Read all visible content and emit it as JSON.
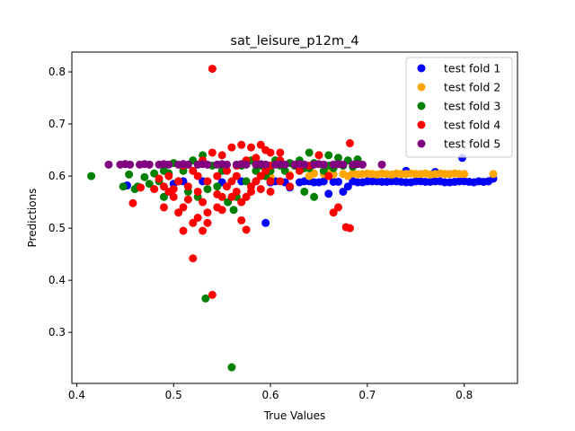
{
  "chart_data": {
    "type": "scatter",
    "title": "sat_leisure_p12m_4",
    "xlabel": "True Values",
    "ylabel": "Predictions",
    "xlim": [
      0.395,
      0.855
    ],
    "ylim": [
      0.202,
      0.838
    ],
    "xticks": [
      "0.4",
      "0.5",
      "0.6",
      "0.7",
      "0.8"
    ],
    "yticks": [
      "0.3",
      "0.4",
      "0.5",
      "0.6",
      "0.7",
      "0.8"
    ],
    "legend_position": "top-right",
    "grid": false,
    "series": [
      {
        "name": "test fold 1",
        "color": "#0000ff",
        "points": [
          [
            0.452,
            0.582
          ],
          [
            0.5,
            0.585
          ],
          [
            0.51,
            0.59
          ],
          [
            0.53,
            0.59
          ],
          [
            0.55,
            0.588
          ],
          [
            0.57,
            0.59
          ],
          [
            0.595,
            0.51
          ],
          [
            0.6,
            0.588
          ],
          [
            0.62,
            0.578
          ],
          [
            0.63,
            0.588
          ],
          [
            0.64,
            0.59
          ],
          [
            0.65,
            0.588
          ],
          [
            0.66,
            0.566
          ],
          [
            0.67,
            0.589
          ],
          [
            0.675,
            0.57
          ],
          [
            0.68,
            0.58
          ],
          [
            0.69,
            0.588
          ],
          [
            0.7,
            0.59
          ],
          [
            0.71,
            0.59
          ],
          [
            0.72,
            0.589
          ],
          [
            0.73,
            0.59
          ],
          [
            0.74,
            0.588
          ],
          [
            0.75,
            0.59
          ],
          [
            0.76,
            0.589
          ],
          [
            0.77,
            0.59
          ],
          [
            0.78,
            0.588
          ],
          [
            0.79,
            0.589
          ],
          [
            0.798,
            0.635
          ],
          [
            0.8,
            0.59
          ],
          [
            0.81,
            0.588
          ],
          [
            0.815,
            0.59
          ],
          [
            0.82,
            0.589
          ],
          [
            0.825,
            0.59
          ],
          [
            0.83,
            0.595
          ],
          [
            0.585,
            0.59
          ],
          [
            0.605,
            0.59
          ],
          [
            0.615,
            0.588
          ],
          [
            0.635,
            0.59
          ],
          [
            0.645,
            0.588
          ],
          [
            0.655,
            0.59
          ],
          [
            0.665,
            0.589
          ],
          [
            0.685,
            0.59
          ],
          [
            0.695,
            0.588
          ],
          [
            0.705,
            0.59
          ],
          [
            0.715,
            0.589
          ],
          [
            0.725,
            0.59
          ],
          [
            0.735,
            0.589
          ],
          [
            0.745,
            0.588
          ],
          [
            0.755,
            0.59
          ],
          [
            0.765,
            0.589
          ],
          [
            0.775,
            0.59
          ],
          [
            0.785,
            0.588
          ],
          [
            0.795,
            0.59
          ],
          [
            0.805,
            0.589
          ],
          [
            0.74,
            0.61
          ],
          [
            0.77,
            0.608
          ]
        ]
      },
      {
        "name": "test fold 2",
        "color": "#ffa500",
        "points": [
          [
            0.6,
            0.598
          ],
          [
            0.62,
            0.602
          ],
          [
            0.64,
            0.6
          ],
          [
            0.66,
            0.604
          ],
          [
            0.68,
            0.6
          ],
          [
            0.69,
            0.603
          ],
          [
            0.7,
            0.605
          ],
          [
            0.71,
            0.603
          ],
          [
            0.72,
            0.604
          ],
          [
            0.73,
            0.605
          ],
          [
            0.74,
            0.604
          ],
          [
            0.75,
            0.604
          ],
          [
            0.76,
            0.605
          ],
          [
            0.77,
            0.604
          ],
          [
            0.78,
            0.604
          ],
          [
            0.79,
            0.605
          ],
          [
            0.8,
            0.604
          ],
          [
            0.83,
            0.604
          ],
          [
            0.705,
            0.604
          ],
          [
            0.715,
            0.605
          ],
          [
            0.725,
            0.603
          ],
          [
            0.735,
            0.604
          ],
          [
            0.745,
            0.605
          ],
          [
            0.755,
            0.604
          ],
          [
            0.765,
            0.603
          ],
          [
            0.775,
            0.605
          ],
          [
            0.785,
            0.604
          ],
          [
            0.795,
            0.604
          ],
          [
            0.675,
            0.604
          ],
          [
            0.685,
            0.605
          ],
          [
            0.695,
            0.604
          ],
          [
            0.665,
            0.603
          ],
          [
            0.655,
            0.604
          ],
          [
            0.645,
            0.605
          ]
        ]
      },
      {
        "name": "test fold 3",
        "color": "#008000",
        "points": [
          [
            0.415,
            0.6
          ],
          [
            0.448,
            0.58
          ],
          [
            0.454,
            0.603
          ],
          [
            0.46,
            0.575
          ],
          [
            0.47,
            0.598
          ],
          [
            0.48,
            0.605
          ],
          [
            0.49,
            0.61
          ],
          [
            0.5,
            0.625
          ],
          [
            0.51,
            0.61
          ],
          [
            0.52,
            0.63
          ],
          [
            0.53,
            0.64
          ],
          [
            0.54,
            0.62
          ],
          [
            0.55,
            0.61
          ],
          [
            0.556,
            0.55
          ],
          [
            0.56,
            0.233
          ],
          [
            0.533,
            0.365
          ],
          [
            0.562,
            0.535
          ],
          [
            0.57,
            0.62
          ],
          [
            0.58,
            0.63
          ],
          [
            0.59,
            0.62
          ],
          [
            0.6,
            0.61
          ],
          [
            0.61,
            0.62
          ],
          [
            0.62,
            0.625
          ],
          [
            0.63,
            0.63
          ],
          [
            0.64,
            0.645
          ],
          [
            0.65,
            0.64
          ],
          [
            0.66,
            0.62
          ],
          [
            0.67,
            0.635
          ],
          [
            0.68,
            0.63
          ],
          [
            0.69,
            0.632
          ],
          [
            0.545,
            0.58
          ],
          [
            0.525,
            0.56
          ],
          [
            0.505,
            0.59
          ],
          [
            0.515,
            0.57
          ],
          [
            0.535,
            0.575
          ],
          [
            0.565,
            0.56
          ],
          [
            0.575,
            0.59
          ],
          [
            0.585,
            0.61
          ],
          [
            0.595,
            0.6
          ],
          [
            0.605,
            0.63
          ],
          [
            0.615,
            0.61
          ],
          [
            0.625,
            0.62
          ],
          [
            0.635,
            0.615
          ],
          [
            0.645,
            0.625
          ],
          [
            0.655,
            0.61
          ],
          [
            0.665,
            0.615
          ],
          [
            0.675,
            0.62
          ],
          [
            0.685,
            0.618
          ],
          [
            0.49,
            0.56
          ],
          [
            0.475,
            0.585
          ],
          [
            0.485,
            0.59
          ],
          [
            0.495,
            0.605
          ],
          [
            0.645,
            0.56
          ],
          [
            0.635,
            0.57
          ],
          [
            0.66,
            0.64
          ],
          [
            0.64,
            0.615
          ],
          [
            0.463,
            0.58
          ]
        ]
      },
      {
        "name": "test fold 4",
        "color": "#ff0000",
        "points": [
          [
            0.54,
            0.806
          ],
          [
            0.458,
            0.548
          ],
          [
            0.466,
            0.578
          ],
          [
            0.48,
            0.575
          ],
          [
            0.49,
            0.54
          ],
          [
            0.495,
            0.57
          ],
          [
            0.5,
            0.56
          ],
          [
            0.505,
            0.53
          ],
          [
            0.51,
            0.495
          ],
          [
            0.515,
            0.555
          ],
          [
            0.52,
            0.51
          ],
          [
            0.52,
            0.442
          ],
          [
            0.525,
            0.57
          ],
          [
            0.53,
            0.495
          ],
          [
            0.535,
            0.51
          ],
          [
            0.54,
            0.372
          ],
          [
            0.545,
            0.54
          ],
          [
            0.55,
            0.56
          ],
          [
            0.555,
            0.58
          ],
          [
            0.56,
            0.59
          ],
          [
            0.565,
            0.6
          ],
          [
            0.57,
            0.55
          ],
          [
            0.575,
            0.56
          ],
          [
            0.58,
            0.58
          ],
          [
            0.585,
            0.59
          ],
          [
            0.59,
            0.6
          ],
          [
            0.595,
            0.61
          ],
          [
            0.6,
            0.62
          ],
          [
            0.53,
            0.63
          ],
          [
            0.54,
            0.645
          ],
          [
            0.55,
            0.64
          ],
          [
            0.56,
            0.655
          ],
          [
            0.57,
            0.66
          ],
          [
            0.58,
            0.655
          ],
          [
            0.59,
            0.66
          ],
          [
            0.595,
            0.65
          ],
          [
            0.6,
            0.645
          ],
          [
            0.51,
            0.62
          ],
          [
            0.52,
            0.61
          ],
          [
            0.525,
            0.6
          ],
          [
            0.535,
            0.59
          ],
          [
            0.545,
            0.6
          ],
          [
            0.555,
            0.61
          ],
          [
            0.565,
            0.62
          ],
          [
            0.575,
            0.63
          ],
          [
            0.585,
            0.635
          ],
          [
            0.515,
            0.58
          ],
          [
            0.505,
            0.59
          ],
          [
            0.495,
            0.6
          ],
          [
            0.485,
            0.595
          ],
          [
            0.575,
            0.497
          ],
          [
            0.57,
            0.515
          ],
          [
            0.61,
            0.63
          ],
          [
            0.62,
            0.6
          ],
          [
            0.63,
            0.61
          ],
          [
            0.64,
            0.62
          ],
          [
            0.65,
            0.64
          ],
          [
            0.66,
            0.6
          ],
          [
            0.665,
            0.53
          ],
          [
            0.67,
            0.54
          ],
          [
            0.678,
            0.502
          ],
          [
            0.682,
            0.5
          ],
          [
            0.682,
            0.663
          ],
          [
            0.61,
            0.645
          ],
          [
            0.53,
            0.55
          ],
          [
            0.545,
            0.565
          ],
          [
            0.56,
            0.56
          ],
          [
            0.58,
            0.57
          ],
          [
            0.59,
            0.575
          ],
          [
            0.6,
            0.59
          ],
          [
            0.525,
            0.52
          ],
          [
            0.535,
            0.53
          ],
          [
            0.55,
            0.535
          ],
          [
            0.565,
            0.57
          ],
          [
            0.51,
            0.54
          ],
          [
            0.5,
            0.575
          ],
          [
            0.49,
            0.58
          ],
          [
            0.6,
            0.57
          ],
          [
            0.61,
            0.59
          ],
          [
            0.62,
            0.58
          ]
        ]
      },
      {
        "name": "test fold 5",
        "color": "#800080",
        "points": [
          [
            0.433,
            0.622
          ],
          [
            0.445,
            0.622
          ],
          [
            0.455,
            0.622
          ],
          [
            0.465,
            0.622
          ],
          [
            0.475,
            0.622
          ],
          [
            0.485,
            0.622
          ],
          [
            0.495,
            0.622
          ],
          [
            0.505,
            0.622
          ],
          [
            0.515,
            0.622
          ],
          [
            0.525,
            0.622
          ],
          [
            0.535,
            0.622
          ],
          [
            0.545,
            0.622
          ],
          [
            0.555,
            0.622
          ],
          [
            0.565,
            0.622
          ],
          [
            0.575,
            0.622
          ],
          [
            0.585,
            0.622
          ],
          [
            0.595,
            0.622
          ],
          [
            0.605,
            0.622
          ],
          [
            0.615,
            0.622
          ],
          [
            0.625,
            0.622
          ],
          [
            0.635,
            0.622
          ],
          [
            0.645,
            0.622
          ],
          [
            0.655,
            0.622
          ],
          [
            0.665,
            0.622
          ],
          [
            0.675,
            0.622
          ],
          [
            0.685,
            0.622
          ],
          [
            0.695,
            0.622
          ],
          [
            0.715,
            0.622
          ],
          [
            0.45,
            0.623
          ],
          [
            0.47,
            0.623
          ],
          [
            0.49,
            0.623
          ],
          [
            0.51,
            0.623
          ],
          [
            0.53,
            0.623
          ],
          [
            0.55,
            0.623
          ],
          [
            0.57,
            0.623
          ],
          [
            0.59,
            0.623
          ],
          [
            0.61,
            0.623
          ],
          [
            0.63,
            0.623
          ],
          [
            0.65,
            0.623
          ],
          [
            0.67,
            0.623
          ],
          [
            0.69,
            0.623
          ]
        ]
      }
    ]
  }
}
